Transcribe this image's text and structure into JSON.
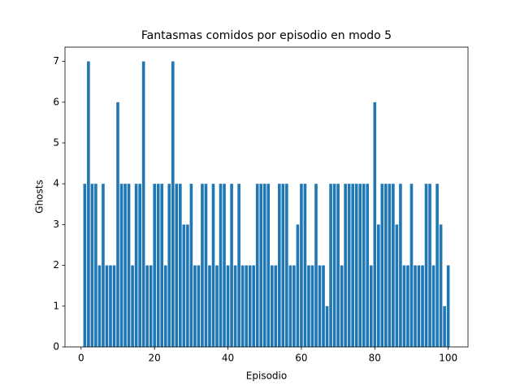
{
  "chart_data": {
    "type": "bar",
    "title": "Fantasmas comidos por episodio en modo 5",
    "x_label": "Episodio",
    "y_label": "Ghosts",
    "color": "#1f77b4",
    "x": [
      1,
      2,
      3,
      4,
      5,
      6,
      7,
      8,
      9,
      10,
      11,
      12,
      13,
      14,
      15,
      16,
      17,
      18,
      19,
      20,
      21,
      22,
      23,
      24,
      25,
      26,
      27,
      28,
      29,
      30,
      31,
      32,
      33,
      34,
      35,
      36,
      37,
      38,
      39,
      40,
      41,
      42,
      43,
      44,
      45,
      46,
      47,
      48,
      49,
      50,
      51,
      52,
      53,
      54,
      55,
      56,
      57,
      58,
      59,
      60,
      61,
      62,
      63,
      64,
      65,
      66,
      67,
      68,
      69,
      70,
      71,
      72,
      73,
      74,
      75,
      76,
      77,
      78,
      79,
      80,
      81,
      82,
      83,
      84,
      85,
      86,
      87,
      88,
      89,
      90,
      91,
      92,
      93,
      94,
      95,
      96,
      97,
      98,
      99,
      100
    ],
    "values": [
      4,
      7,
      4,
      4,
      2,
      4,
      2,
      2,
      2,
      6,
      4,
      4,
      4,
      2,
      4,
      4,
      7,
      2,
      2,
      4,
      4,
      4,
      2,
      4,
      7,
      4,
      4,
      3,
      3,
      4,
      2,
      2,
      4,
      4,
      2,
      4,
      2,
      4,
      4,
      2,
      4,
      2,
      4,
      2,
      2,
      2,
      2,
      4,
      4,
      4,
      4,
      2,
      2,
      4,
      4,
      4,
      2,
      2,
      3,
      4,
      4,
      2,
      2,
      4,
      2,
      2,
      1,
      4,
      4,
      4,
      2,
      4,
      4,
      4,
      4,
      4,
      4,
      4,
      2,
      6,
      3,
      4,
      4,
      4,
      4,
      3,
      4,
      2,
      2,
      4,
      2,
      2,
      2,
      4,
      4,
      2,
      4,
      3,
      1,
      2
    ],
    "xlim": [
      -4.39,
      105.39
    ],
    "xticks": [
      0,
      20,
      40,
      60,
      80,
      100
    ],
    "ylim": [
      0,
      7.35
    ],
    "yticks": [
      0,
      1,
      2,
      3,
      4,
      5,
      6,
      7
    ]
  }
}
